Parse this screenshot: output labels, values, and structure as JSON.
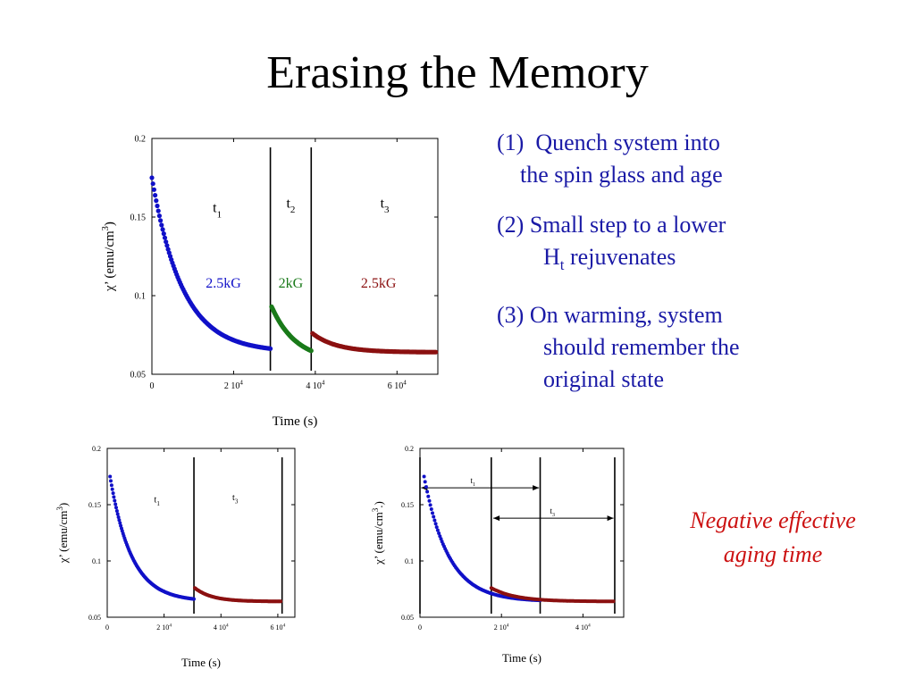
{
  "slide": {
    "title": "Erasing the Memory"
  },
  "bullets": [
    {
      "num": "(1)",
      "line1": "Quench system into",
      "line2": "the spin glass and age"
    },
    {
      "num": "(2)",
      "line1": "Small step to a lower",
      "line2_main": "H",
      "line2_sub": "t",
      "line2_rest": " rejuvenates"
    },
    {
      "num": "(3)",
      "line1": "On warming, system",
      "line2": "should remember the",
      "line3": "original state"
    }
  ],
  "note": {
    "line1": "Negative effective",
    "line2": "aging time"
  },
  "colors": {
    "blue": "#1010c8",
    "green": "#1a7a1a",
    "red": "#8b1010",
    "bullet_text": "#1a1aa6",
    "note_text": "#cc1111"
  },
  "chart_data": [
    {
      "type": "scatter",
      "title": "",
      "xlabel": "Time (s)",
      "ylabel_prefix": "χ’ (emu/cm",
      "ylabel_sup": "3",
      "ylabel_suffix": ")",
      "xlim": [
        0,
        70000
      ],
      "ylim": [
        0.05,
        0.2
      ],
      "yticks": [
        {
          "v": 0.2,
          "label": "0.2"
        },
        {
          "v": 0.15,
          "label": "0.15"
        },
        {
          "v": 0.1,
          "label": "0.1"
        },
        {
          "v": 0.05,
          "label": "0.05"
        }
      ],
      "xticks": [
        {
          "v": 0,
          "m": "0",
          "e": ""
        },
        {
          "v": 20000,
          "m": "2 10",
          "e": "4"
        },
        {
          "v": 40000,
          "m": "4 10",
          "e": "4"
        },
        {
          "v": 60000,
          "m": "6 10",
          "e": "4"
        }
      ],
      "vlines": [
        29000,
        39000
      ],
      "region_labels": [
        {
          "x": 16000,
          "y": 0.153,
          "main": "t",
          "sub": "1"
        },
        {
          "x": 34000,
          "y": 0.156,
          "main": "t",
          "sub": "2"
        },
        {
          "x": 57000,
          "y": 0.156,
          "main": "t",
          "sub": "3"
        }
      ],
      "field_labels": [
        {
          "x": 17500,
          "y": 0.105,
          "text": "2.5kG",
          "color": "#1010c8"
        },
        {
          "x": 34000,
          "y": 0.105,
          "text": "2kG",
          "color": "#1a7a1a"
        },
        {
          "x": 55500,
          "y": 0.105,
          "text": "2.5kG",
          "color": "#8b1010"
        }
      ],
      "series": [
        {
          "name": "t1 2.5kG",
          "color": "#1010c8",
          "kind": "decay",
          "t0": 0,
          "t1": 29000,
          "y_start": 0.175,
          "y_inf": 0.064,
          "tau": 7500
        },
        {
          "name": "t2 2kG",
          "color": "#1a7a1a",
          "kind": "decay",
          "t0": 29300,
          "t1": 39000,
          "y_start": 0.093,
          "y_inf": 0.058,
          "tau": 6000
        },
        {
          "name": "t3 2.5kG",
          "color": "#8b1010",
          "kind": "decay",
          "t0": 39300,
          "t1": 69500,
          "y_start": 0.076,
          "y_inf": 0.064,
          "tau": 6000
        }
      ]
    },
    {
      "type": "scatter",
      "title": "",
      "xlabel": "Time (s)",
      "ylabel_prefix": "χ’ (emu/cm",
      "ylabel_sup": "3",
      "ylabel_suffix": ")",
      "xlim": [
        0,
        66000
      ],
      "ylim": [
        0.05,
        0.2
      ],
      "yticks": [
        {
          "v": 0.2,
          "label": "0.2"
        },
        {
          "v": 0.15,
          "label": "0.15"
        },
        {
          "v": 0.1,
          "label": "0.1"
        },
        {
          "v": 0.05,
          "label": "0.05"
        }
      ],
      "xticks": [
        {
          "v": 0,
          "m": "0",
          "e": ""
        },
        {
          "v": 20000,
          "m": "2 10",
          "e": "4"
        },
        {
          "v": 40000,
          "m": "4 10",
          "e": "4"
        },
        {
          "v": 60000,
          "m": "6 10",
          "e": "4"
        }
      ],
      "vlines": [
        30500,
        61500
      ],
      "region_labels": [
        {
          "x": 17500,
          "y": 0.152,
          "main": "t",
          "sub": "1"
        },
        {
          "x": 45000,
          "y": 0.154,
          "main": "t",
          "sub": "3"
        }
      ],
      "field_labels": [],
      "series": [
        {
          "name": "t1",
          "color": "#1010c8",
          "kind": "decay",
          "t0": 1000,
          "t1": 30500,
          "y_start": 0.175,
          "y_inf": 0.064,
          "tau": 7500
        },
        {
          "name": "t3",
          "color": "#8b1010",
          "kind": "decay",
          "t0": 30800,
          "t1": 61000,
          "y_start": 0.076,
          "y_inf": 0.064,
          "tau": 6000
        }
      ]
    },
    {
      "type": "scatter",
      "title": "",
      "xlabel": "Time (s)",
      "ylabel_prefix": "χ’ (emu/cm",
      "ylabel_sup": "3",
      "ylabel_suffix": ".)",
      "xlim": [
        0,
        50000
      ],
      "ylim": [
        0.05,
        0.2
      ],
      "yticks": [
        {
          "v": 0.2,
          "label": "0.2"
        },
        {
          "v": 0.15,
          "label": "0.15"
        },
        {
          "v": 0.1,
          "label": "0.1"
        },
        {
          "v": 0.05,
          "label": "0.05"
        }
      ],
      "xticks": [
        {
          "v": 0,
          "m": "0",
          "e": ""
        },
        {
          "v": 20000,
          "m": "2 10",
          "e": "4"
        },
        {
          "v": 40000,
          "m": "4 10",
          "e": "4"
        }
      ],
      "vlines": [
        0,
        17500,
        29500,
        47800
      ],
      "region_labels": [
        {
          "x": 13000,
          "y": 0.169,
          "main": "t",
          "sub": "1"
        },
        {
          "x": 32500,
          "y": 0.142,
          "main": "t",
          "sub": "3"
        }
      ],
      "arrows": [
        {
          "x1": 300,
          "x2": 29200,
          "y": 0.165
        },
        {
          "x1": 18000,
          "x2": 47500,
          "y": 0.138
        }
      ],
      "field_labels": [],
      "series": [
        {
          "name": "t1",
          "color": "#1010c8",
          "kind": "decay",
          "t0": 1000,
          "t1": 29500,
          "y_start": 0.175,
          "y_inf": 0.064,
          "tau": 6000
        },
        {
          "name": "t3",
          "color": "#8b1010",
          "kind": "decay",
          "t0": 17500,
          "t1": 47500,
          "y_start": 0.076,
          "y_inf": 0.064,
          "tau": 6000
        }
      ]
    }
  ]
}
